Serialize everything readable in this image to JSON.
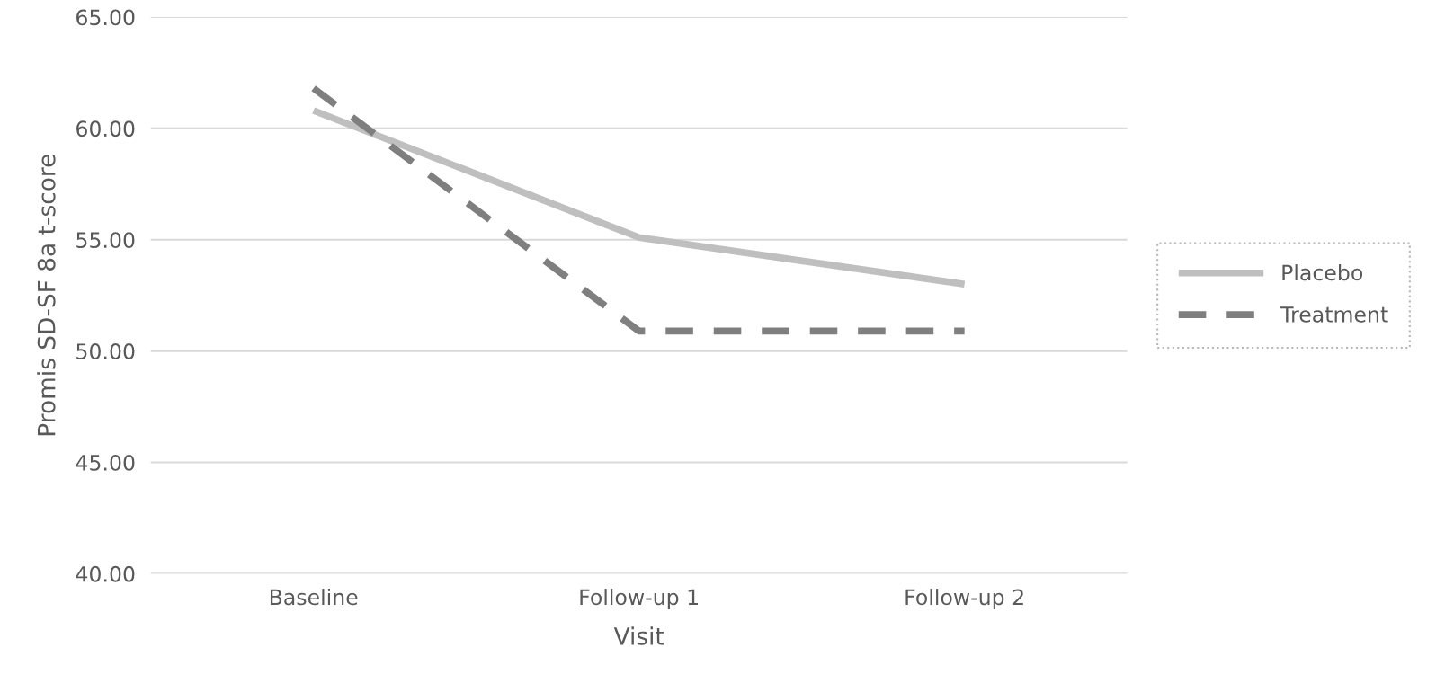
{
  "chart_data": {
    "type": "line",
    "xlabel": "Visit",
    "ylabel": "Promis SD-SF 8a t-score",
    "categories": [
      "Baseline",
      "Follow-up 1",
      "Follow-up 2"
    ],
    "series": [
      {
        "name": "Placebo",
        "color": "#bfbfbf",
        "values": [
          60.8,
          55.1,
          53.0
        ],
        "line_style": "solid"
      },
      {
        "name": "Treatment",
        "color": "#7f7f7f",
        "values": [
          61.8,
          50.9,
          50.9
        ],
        "line_style": "dashed"
      }
    ],
    "ylim": [
      40,
      65
    ],
    "yticks": [
      {
        "value": 40,
        "label": "40.00"
      },
      {
        "value": 45,
        "label": "45.00"
      },
      {
        "value": 50,
        "label": "50.00"
      },
      {
        "value": 55,
        "label": "55.00"
      },
      {
        "value": 60,
        "label": "60.00"
      },
      {
        "value": 65,
        "label": "65.00"
      }
    ],
    "grid": "y",
    "legend": "right",
    "marker": "none"
  }
}
